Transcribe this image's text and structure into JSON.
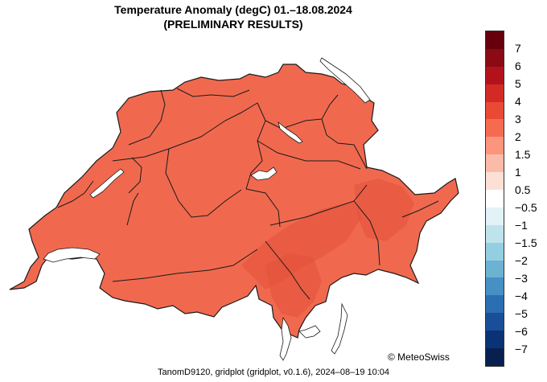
{
  "title": "Temperature Anomaly (degC) 01.–18.08.2024",
  "subtitle": "(PRELIMINARY RESULTS)",
  "copyright": "© MeteoSwiss",
  "footer": "TanomD9120, gridplot (gridplot, v0.1.6), 2024–08–19 10:04",
  "colors": {
    "map_fill": "#f0694f",
    "map_warm_patch": "#e4503a",
    "border": "#1a1a1a",
    "lake_fill": "#ffffff"
  },
  "legend": {
    "ticks": [
      "7",
      "6",
      "5",
      "4",
      "3",
      "2",
      "1.5",
      "1",
      "0.5",
      "−0.5",
      "−1",
      "−1.5",
      "−2",
      "−3",
      "−4",
      "−5",
      "−6",
      "−7"
    ],
    "colors": [
      "#67000d",
      "#8b0a13",
      "#b2131b",
      "#d42a26",
      "#ea4a35",
      "#f56b50",
      "#fb957c",
      "#fcbba9",
      "#fde0d5",
      "#ffffff",
      "#e2f2f7",
      "#bfe3ed",
      "#93cfe0",
      "#6bb2d3",
      "#4690c3",
      "#2b6eb2",
      "#1a4e99",
      "#0b3275",
      "#08204f"
    ]
  }
}
